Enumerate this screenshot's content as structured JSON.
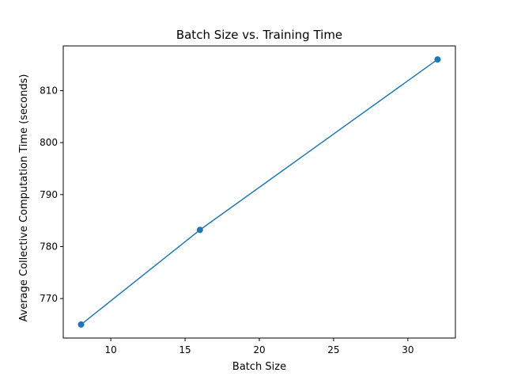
{
  "chart_data": {
    "type": "line",
    "title": "Batch Size vs. Training Time",
    "xlabel": "Batch Size",
    "ylabel": "Average Collective Computation Time (seconds)",
    "xlim": [
      6.8,
      33.2
    ],
    "ylim": [
      762.4,
      818.6
    ],
    "xticks": [
      10,
      15,
      20,
      25,
      30
    ],
    "yticks": [
      770,
      780,
      790,
      800,
      810
    ],
    "grid": false,
    "series": [
      {
        "x": [
          8,
          16,
          32
        ],
        "y": [
          765.0,
          783.2,
          816.0
        ],
        "color": "#1f77b4",
        "marker": "circle"
      }
    ]
  }
}
